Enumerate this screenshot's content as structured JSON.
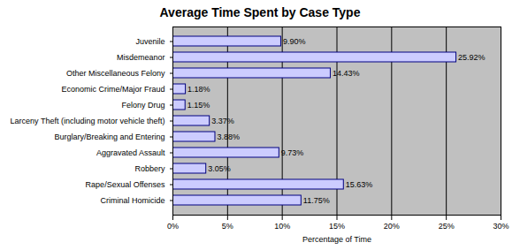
{
  "chart_data": {
    "type": "bar",
    "title": "Average Time Spent by Case Type",
    "orientation": "horizontal",
    "x_label": "Percentage of Time",
    "categories": [
      "Juvenile",
      "Misdemeanor",
      "Other Miscellaneous Felony",
      "Economic Crime/Major Fraud",
      "Felony Drug",
      "Larceny Theft (including motor vehicle theft)",
      "Burglary/Breaking and Entering",
      "Aggravated Assault",
      "Robbery",
      "Rape/Sexual Offenses",
      "Criminal Homicide"
    ],
    "values": [
      9.9,
      25.92,
      14.43,
      1.18,
      1.15,
      3.37,
      3.88,
      9.73,
      3.05,
      15.63,
      11.75
    ],
    "value_labels": [
      "9.90%",
      "25.92%",
      "14.43%",
      "1.18%",
      "1.15%",
      "3.37%",
      "3.88%",
      "9.73%",
      "3.05%",
      "15.63%",
      "11.75%"
    ],
    "data_labels": true,
    "color": "#ccccff",
    "xlim": [
      0,
      30
    ],
    "xticks": [
      {
        "value": 0,
        "label": "0%"
      },
      {
        "value": 5,
        "label": "5%"
      },
      {
        "value": 10,
        "label": "10%"
      },
      {
        "value": 15,
        "label": "15%"
      },
      {
        "value": 20,
        "label": "20%"
      },
      {
        "value": 25,
        "label": "25%"
      },
      {
        "value": 30,
        "label": "30%"
      }
    ],
    "grid": true
  }
}
